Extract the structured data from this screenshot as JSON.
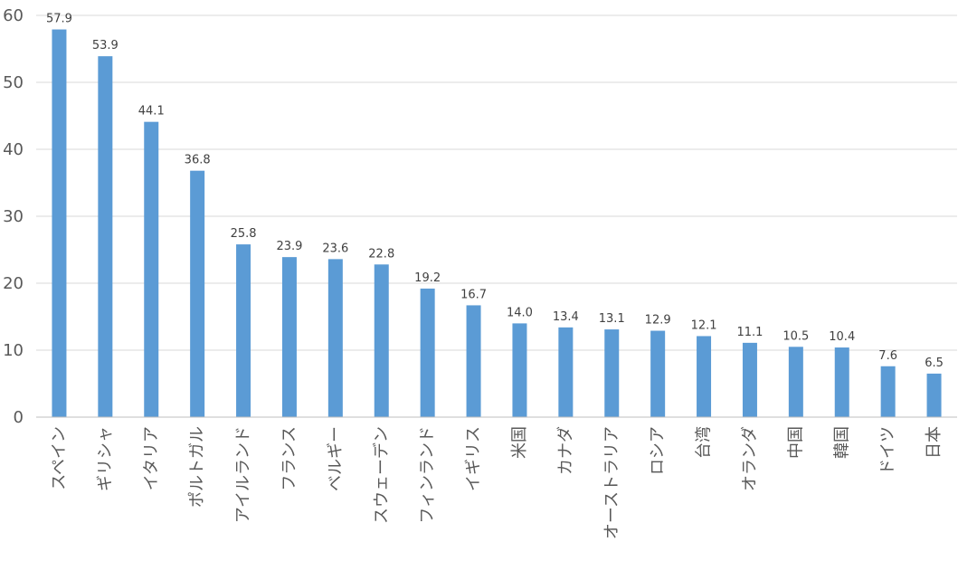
{
  "chart_data": {
    "type": "bar",
    "title": "",
    "xlabel": "",
    "ylabel": "",
    "categories": [
      "スペイン",
      "ギリシャ",
      "イタリア",
      "ポルトガル",
      "アイルランド",
      "フランス",
      "ベルギー",
      "スウェーデン",
      "フィンランド",
      "イギリス",
      "米国",
      "カナダ",
      "オーストラリア",
      "ロシア",
      "台湾",
      "オランダ",
      "中国",
      "韓国",
      "ドイツ",
      "日本"
    ],
    "values": [
      57.9,
      53.9,
      44.1,
      36.8,
      25.8,
      23.9,
      23.6,
      22.8,
      19.2,
      16.7,
      14.0,
      13.4,
      13.1,
      12.9,
      12.1,
      11.1,
      10.5,
      10.4,
      7.6,
      6.5
    ],
    "value_labels": [
      "57.9",
      "53.9",
      "44.1",
      "36.8",
      "25.8",
      "23.9",
      "23.6",
      "22.8",
      "19.2",
      "16.7",
      "14.0",
      "13.4",
      "13.1",
      "12.9",
      "12.1",
      "11.1",
      "10.5",
      "10.4",
      "7.6",
      "6.5"
    ],
    "ylim": [
      0,
      60
    ],
    "yticks": [
      0,
      10,
      20,
      30,
      40,
      50,
      60
    ],
    "grid": true,
    "legend": "none",
    "bar_color": "#5b9bd5",
    "grid_color": "#d9d9d9"
  }
}
